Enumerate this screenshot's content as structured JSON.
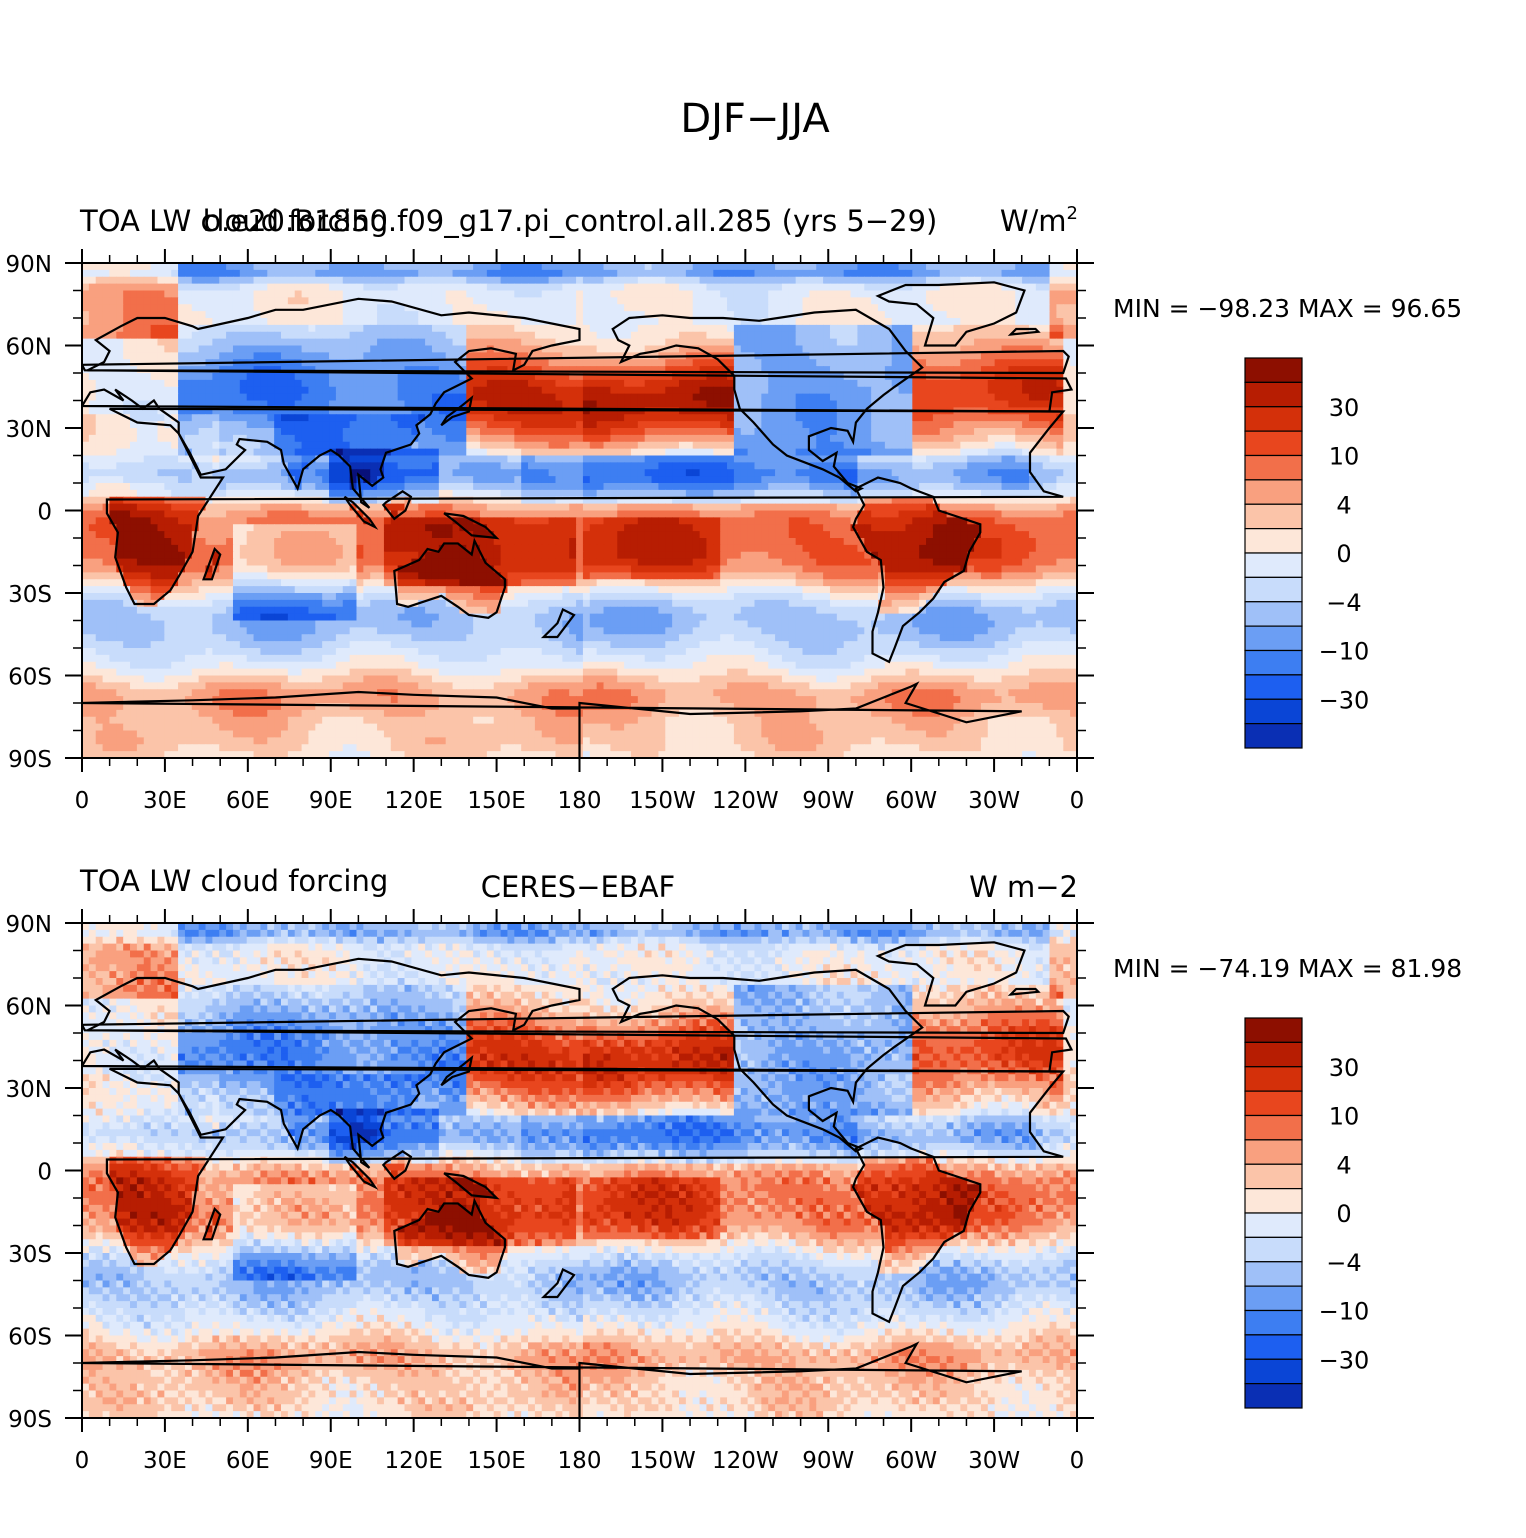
{
  "figure": {
    "title": "DJF−JJA"
  },
  "colors": {
    "levels": [
      "#08107a",
      "#0a2fb4",
      "#0a45d6",
      "#1d5ff0",
      "#3d7ef2",
      "#6b9ef4",
      "#9fc0f8",
      "#c8dcfb",
      "#dfeafc",
      "#fde7d9",
      "#fbc4a9",
      "#f9a07f",
      "#f26f4a",
      "#e8461e",
      "#d4300a",
      "#b71d02",
      "#8d0f00"
    ],
    "continent": "#000000"
  },
  "chart_data": [
    {
      "type": "heatmap",
      "left_title": "TOA LW cloud forcing",
      "center_title": "b.e20.B1850.f09_g17.pi_control.all.285 (yrs 5−29)",
      "right_title": "W/m",
      "right_title_sup": "2",
      "xticks": [
        "0",
        "30E",
        "60E",
        "90E",
        "120E",
        "150E",
        "180",
        "150W",
        "120W",
        "90W",
        "60W",
        "30W",
        "0"
      ],
      "yticks": [
        "90N",
        "60N",
        "30N",
        "0",
        "30S",
        "60S",
        "90S"
      ],
      "stats": "MIN = −98.23  MAX =  96.65",
      "min": -98.23,
      "max": 96.65,
      "colorbar_labels": [
        "30",
        "10",
        "4",
        "0",
        "−4",
        "−10",
        "−30"
      ],
      "colorbar_levels": [
        60,
        45,
        30,
        20,
        10,
        7,
        4,
        2,
        0,
        -2,
        -4,
        -7,
        -10,
        -20,
        -30,
        -45,
        -60
      ]
    },
    {
      "type": "heatmap",
      "left_title": "TOA LW cloud forcing",
      "center_title": "CERES−EBAF",
      "right_title": "W m−2",
      "right_title_sup": "",
      "xticks": [
        "0",
        "30E",
        "60E",
        "90E",
        "120E",
        "150E",
        "180",
        "150W",
        "120W",
        "90W",
        "60W",
        "30W",
        "0"
      ],
      "yticks": [
        "90N",
        "60N",
        "30N",
        "0",
        "30S",
        "60S",
        "90S"
      ],
      "stats": "MIN = −74.19  MAX =  81.98",
      "min": -74.19,
      "max": 81.98,
      "colorbar_labels": [
        "30",
        "10",
        "4",
        "0",
        "−4",
        "−10",
        "−30"
      ],
      "colorbar_levels": [
        60,
        45,
        30,
        20,
        10,
        7,
        4,
        2,
        0,
        -2,
        -4,
        -7,
        -10,
        -20,
        -30,
        -45,
        -60
      ]
    }
  ]
}
